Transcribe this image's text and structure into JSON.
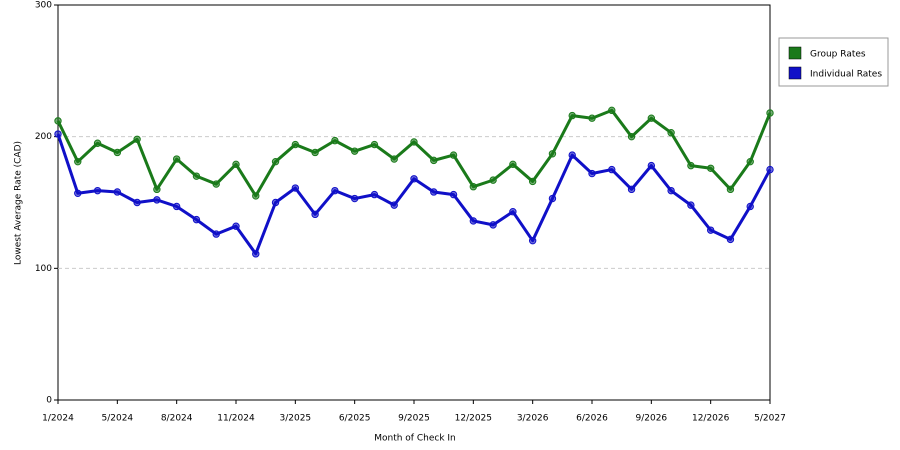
{
  "chart_data": {
    "type": "line",
    "x_label": "Month of Check In",
    "y_label": "Lowest Average Rate (CAD)",
    "categories": [
      "1/2024",
      null,
      null,
      "5/2024",
      null,
      null,
      "8/2024",
      null,
      null,
      "11/2024",
      null,
      null,
      "3/2025",
      null,
      null,
      "6/2025",
      null,
      null,
      "9/2025",
      null,
      null,
      "12/2025",
      null,
      null,
      "3/2026",
      null,
      null,
      "6/2026",
      null,
      null,
      "9/2026",
      null,
      null,
      "12/2026",
      null,
      null,
      "5/2027"
    ],
    "series": [
      {
        "name": "Group Rates",
        "color": "#1a7a1a",
        "values": [
          212,
          181,
          195,
          188,
          198,
          160,
          183,
          170,
          164,
          179,
          155,
          181,
          194,
          188,
          197,
          189,
          194,
          183,
          196,
          182,
          186,
          162,
          167,
          179,
          166,
          187,
          216,
          214,
          220,
          200,
          214,
          203,
          178,
          176,
          160,
          181,
          218
        ]
      },
      {
        "name": "Individual Rates",
        "color": "#1010c8",
        "values": [
          202,
          157,
          159,
          158,
          150,
          152,
          147,
          137,
          126,
          132,
          111,
          150,
          161,
          141,
          159,
          153,
          156,
          148,
          168,
          158,
          156,
          136,
          133,
          143,
          121,
          153,
          186,
          172,
          175,
          160,
          178,
          159,
          148,
          129,
          122,
          147,
          175
        ]
      }
    ],
    "ylim": [
      0,
      300
    ],
    "yticks": [
      0,
      100,
      200,
      300
    ],
    "grid": true,
    "legend": "right"
  }
}
